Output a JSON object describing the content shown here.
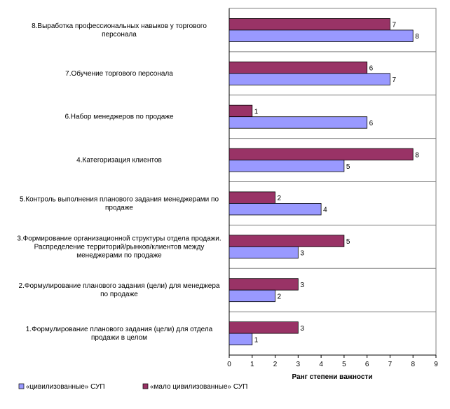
{
  "chart_data": {
    "type": "bar",
    "orientation": "horizontal",
    "categories": [
      [
        "8.Выработка профессиональных навыков у торгового",
        "персонала"
      ],
      [
        "7.Обучение торгового персонала"
      ],
      [
        "6.Набор менеджеров по продаже"
      ],
      [
        "4.Категоризация клиентов"
      ],
      [
        "5.Контроль выполнения планового задания менеджерами по",
        "продаже"
      ],
      [
        "3.Формирование организационной структуры отдела продажи.",
        "Распределение территорий/рынков/клиентов между",
        "менеджерами по продаже"
      ],
      [
        "2.Формулирование планового задания (цели) для менеджера",
        "по продаже"
      ],
      [
        "1.Формулирование планового задания (цели) для отдела",
        "продажи в целом"
      ]
    ],
    "series": [
      {
        "name": "«цивилизованные» СУП",
        "color": "#9999ff",
        "values": [
          8,
          7,
          6,
          5,
          4,
          3,
          2,
          1
        ]
      },
      {
        "name": "«мало цивилизованные» СУП",
        "color": "#993366",
        "values": [
          7,
          6,
          1,
          8,
          2,
          5,
          3,
          3
        ]
      }
    ],
    "xlabel": "Ранг степени важности",
    "xlim": [
      0,
      9
    ],
    "xticks": [
      "0",
      "1",
      "2",
      "3",
      "4",
      "5",
      "6",
      "7",
      "8",
      "9"
    ],
    "grid": true,
    "legend": "bottom"
  }
}
